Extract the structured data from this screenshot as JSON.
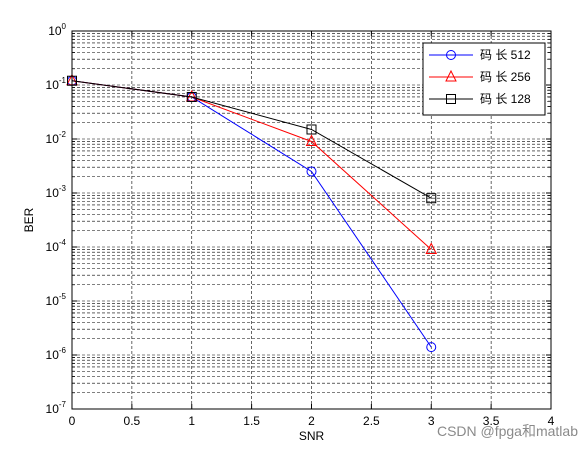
{
  "chart_data": {
    "type": "line",
    "xlabel": "SNR",
    "ylabel": "BER",
    "xlim": [
      0,
      4
    ],
    "ylim": [
      1e-07,
      1
    ],
    "yscale": "log",
    "grid": true,
    "legend_position": "top-right",
    "x_ticks": [
      "0",
      "0.5",
      "1",
      "1.5",
      "2",
      "2.5",
      "3",
      "3.5",
      "4"
    ],
    "y_tick_base": "10",
    "y_tick_exponents": [
      "0",
      "-1",
      "-2",
      "-3",
      "-4",
      "-5",
      "-6",
      "-7"
    ],
    "series": [
      {
        "name": "码 长 512",
        "color": "#0000ff",
        "marker": "circle",
        "x": [
          0,
          1,
          2,
          3
        ],
        "y": [
          0.12,
          0.06,
          0.0025,
          1.4e-06
        ]
      },
      {
        "name": "码 长 256",
        "color": "#ff0000",
        "marker": "triangle",
        "x": [
          0,
          1,
          2,
          3
        ],
        "y": [
          0.12,
          0.06,
          0.009,
          9e-05
        ]
      },
      {
        "name": "码 长 128",
        "color": "#000000",
        "marker": "square",
        "x": [
          0,
          1,
          2,
          3
        ],
        "y": [
          0.12,
          0.06,
          0.015,
          0.0008
        ]
      }
    ]
  },
  "watermark": "CSDN @fpga和matlab"
}
